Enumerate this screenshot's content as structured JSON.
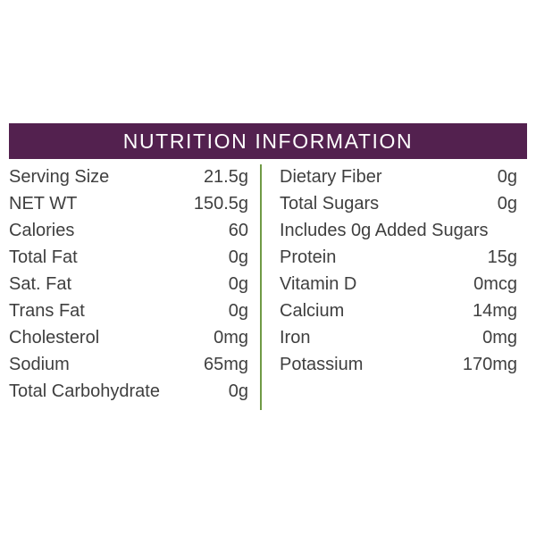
{
  "title": "NUTRITION INFORMATION",
  "colors": {
    "header_bg": "#53214f",
    "divider": "#6f9a45",
    "text": "#3f3f3f"
  },
  "left": [
    {
      "label": "Serving Size",
      "value": "21.5g"
    },
    {
      "label": "NET WT",
      "value": "150.5g"
    },
    {
      "label": "Calories",
      "value": "60"
    },
    {
      "label": "Total Fat",
      "value": "0g"
    },
    {
      "label": "Sat. Fat",
      "value": "0g"
    },
    {
      "label": "Trans Fat",
      "value": "0g"
    },
    {
      "label": "Cholesterol",
      "value": "0mg"
    },
    {
      "label": "Sodium",
      "value": "65mg"
    },
    {
      "label": "Total Carbohydrate",
      "value": "0g"
    }
  ],
  "right": [
    {
      "label": "Dietary Fiber",
      "value": "0g"
    },
    {
      "label": "Total Sugars",
      "value": "0g"
    },
    {
      "label": "Includes 0g Added Sugars",
      "value": ""
    },
    {
      "label": "Protein",
      "value": "15g"
    },
    {
      "label": "Vitamin D",
      "value": "0mcg"
    },
    {
      "label": "Calcium",
      "value": "14mg"
    },
    {
      "label": "Iron",
      "value": "0mg"
    },
    {
      "label": "Potassium",
      "value": "170mg"
    }
  ]
}
